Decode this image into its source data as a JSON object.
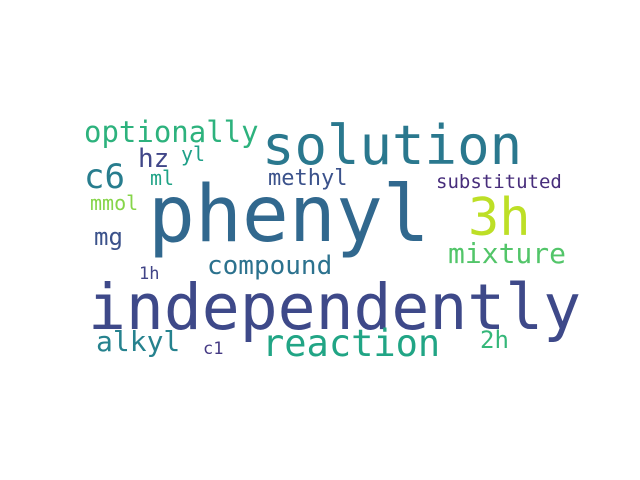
{
  "words": [
    {
      "text": "phenyl",
      "color": "#31688e"
    },
    {
      "text": "independently",
      "color": "#3e4989"
    },
    {
      "text": "solution",
      "color": "#2a788e"
    },
    {
      "text": "3h",
      "color": "#bddf26"
    },
    {
      "text": "reaction",
      "color": "#21a585"
    },
    {
      "text": "optionally",
      "color": "#2db27d"
    },
    {
      "text": "compound",
      "color": "#2c728e"
    },
    {
      "text": "mixture",
      "color": "#52c569"
    },
    {
      "text": "c6",
      "color": "#287d8e"
    },
    {
      "text": "alkyl",
      "color": "#26828e"
    },
    {
      "text": "methyl",
      "color": "#3b528b"
    },
    {
      "text": "substituted",
      "color": "#472d7b"
    },
    {
      "text": "hz",
      "color": "#404688"
    },
    {
      "text": "mg",
      "color": "#3b528b"
    },
    {
      "text": "mmol",
      "color": "#86d549"
    },
    {
      "text": "2h",
      "color": "#35b779"
    },
    {
      "text": "ml",
      "color": "#20a386"
    },
    {
      "text": "yl",
      "color": "#1fa088"
    },
    {
      "text": "1h",
      "color": "#414487"
    },
    {
      "text": "c1",
      "color": "#443983"
    }
  ]
}
